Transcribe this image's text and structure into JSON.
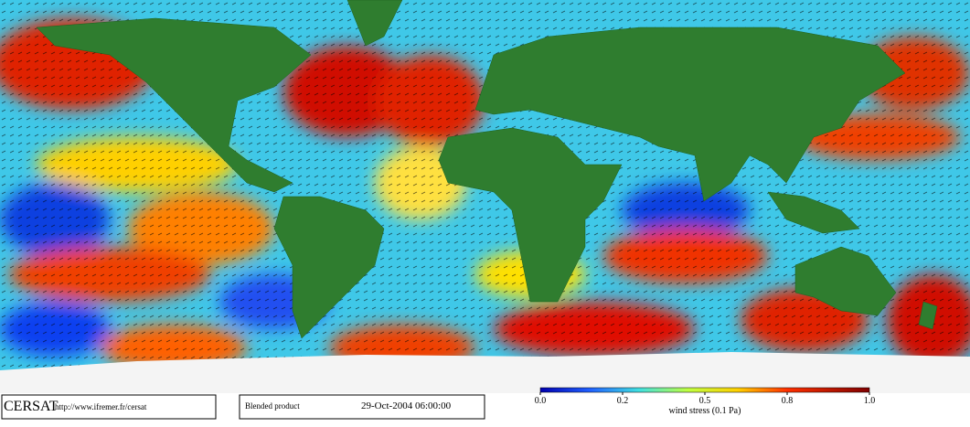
{
  "footer": {
    "logo": "CERSAT",
    "url": "http://www.ifremer.fr/cersat",
    "product": "Blended product",
    "timestamp": "29-Oct-2004 06:00:00"
  },
  "colorbar": {
    "label": "wind stress (0.1 Pa)",
    "ticks": [
      {
        "value": 0,
        "label": "0.0"
      },
      {
        "value": 0.2,
        "label": "0.2"
      },
      {
        "value": 0.5,
        "label": "0.5"
      },
      {
        "value": 0.8,
        "label": "0.8"
      },
      {
        "value": 1,
        "label": "1.0"
      }
    ]
  }
}
